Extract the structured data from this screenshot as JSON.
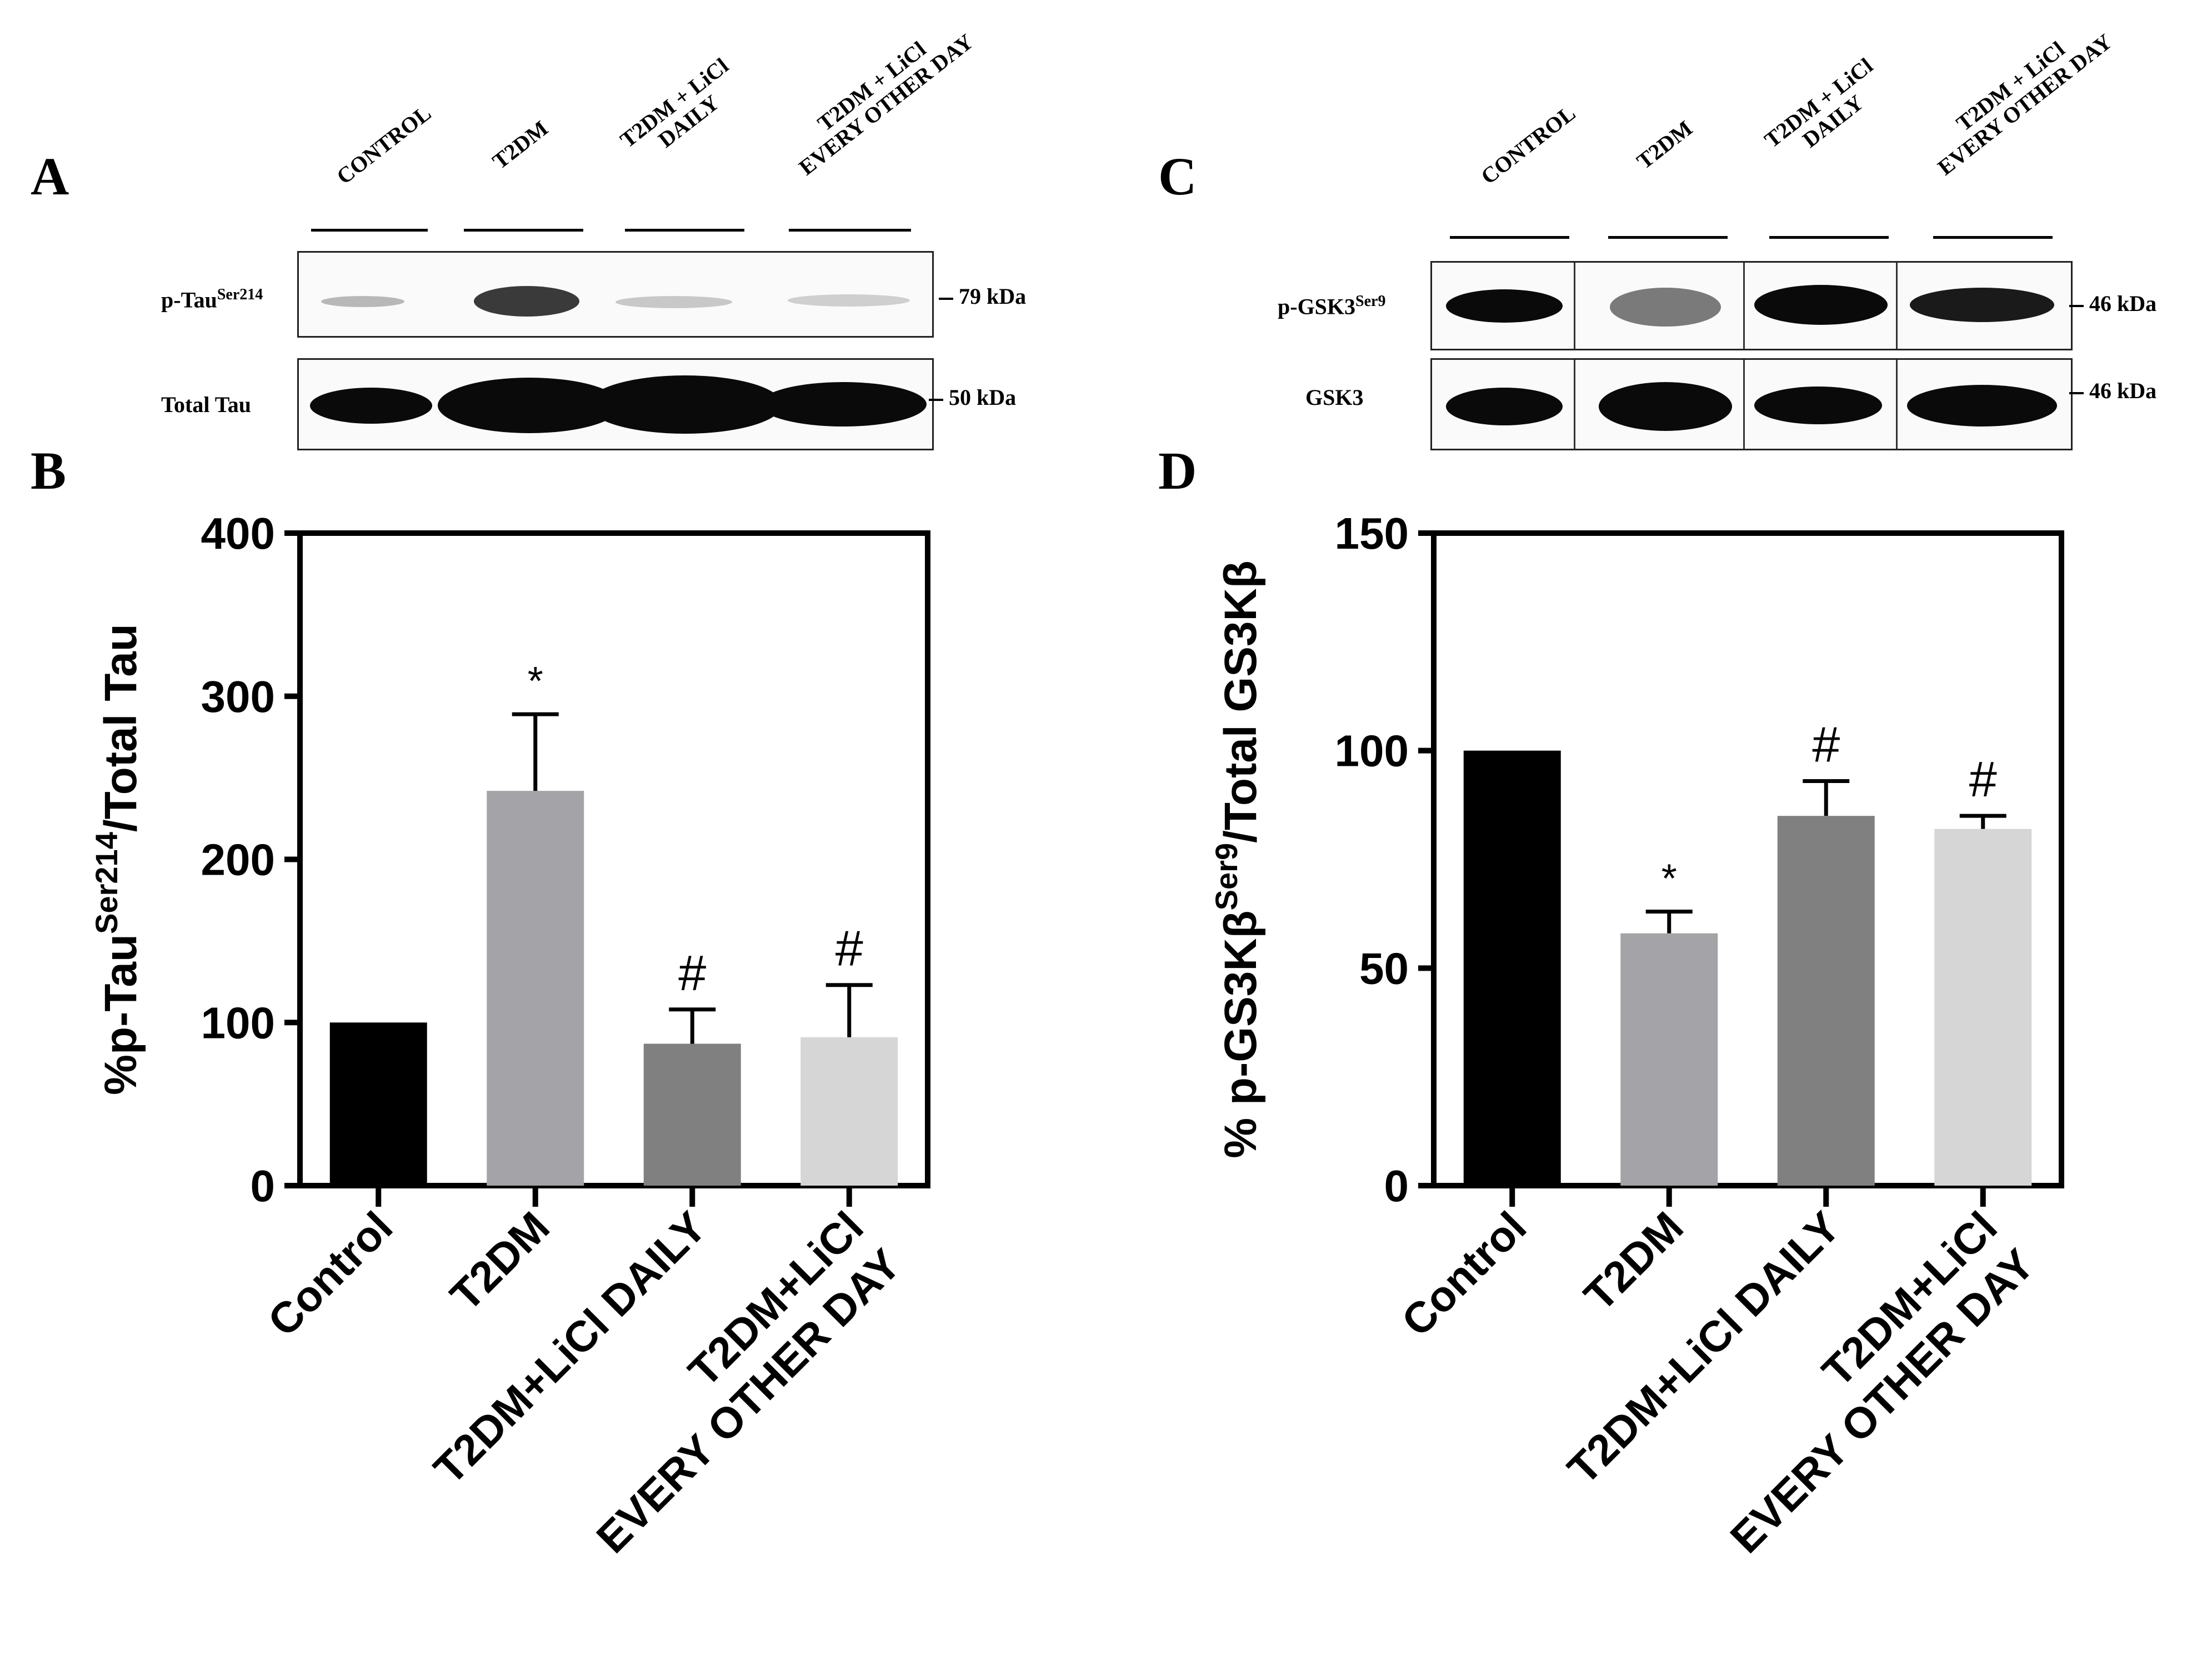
{
  "panels": {
    "A": {
      "letter": "A",
      "lanes": [
        "CONTROL",
        "T2DM",
        "T2DM + LiCl\nDAILY",
        "T2DM + LiCl\nEVERY OTHER DAY"
      ],
      "rows": [
        {
          "label": "p-Tau",
          "sup": "Ser214",
          "kda": "79 kDa"
        },
        {
          "label": "Total  Tau",
          "sup": "",
          "kda": "50 kDa"
        }
      ]
    },
    "C": {
      "letter": "C",
      "lanes": [
        "CONTROL",
        "T2DM",
        "T2DM + LiCl\nDAILY",
        "T2DM + LiCl\nEVERY OTHER DAY"
      ],
      "rows": [
        {
          "label": "p-GSK3",
          "sup": "Ser9",
          "kda": "46 kDa"
        },
        {
          "label": "GSK3",
          "sup": "",
          "kda": "46 kDa"
        }
      ]
    },
    "B": {
      "letter": "B"
    },
    "D": {
      "letter": "D"
    }
  },
  "chart_data": [
    {
      "panel": "B",
      "type": "bar",
      "categories": [
        "Control",
        "T2DM",
        "T2DM+LiCl DAILY",
        "T2DM+LiCl\nEVERY OTHER DAY"
      ],
      "values": [
        100,
        242,
        87,
        91
      ],
      "errors": [
        0,
        47,
        21,
        32
      ],
      "annotations": [
        "",
        "*",
        "#",
        "#"
      ],
      "colors": [
        "#000000",
        "#a3a3a8",
        "#808080",
        "#d6d6d6"
      ],
      "ylabel_main": "%p-Tau",
      "ylabel_sup": "Ser214",
      "ylabel_tail": "/Total Tau",
      "ylim": [
        0,
        400
      ],
      "yticks": [
        0,
        100,
        200,
        300,
        400
      ]
    },
    {
      "panel": "D",
      "type": "bar",
      "categories": [
        "Control",
        "T2DM",
        "T2DM+LiCl DAILY",
        "T2DM+LiCl\nEVERY OTHER DAY"
      ],
      "values": [
        100,
        58,
        85,
        82
      ],
      "errors": [
        0,
        5,
        8,
        3
      ],
      "annotations": [
        "",
        "*",
        "#",
        "#"
      ],
      "colors": [
        "#000000",
        "#a3a3a8",
        "#808080",
        "#d6d6d6"
      ],
      "ylabel_main": "% p-GS3Kβ",
      "ylabel_sup": "Ser9",
      "ylabel_tail": "/Total GS3Kβ",
      "ylim": [
        0,
        150
      ],
      "yticks": [
        0,
        50,
        100,
        150
      ]
    }
  ]
}
